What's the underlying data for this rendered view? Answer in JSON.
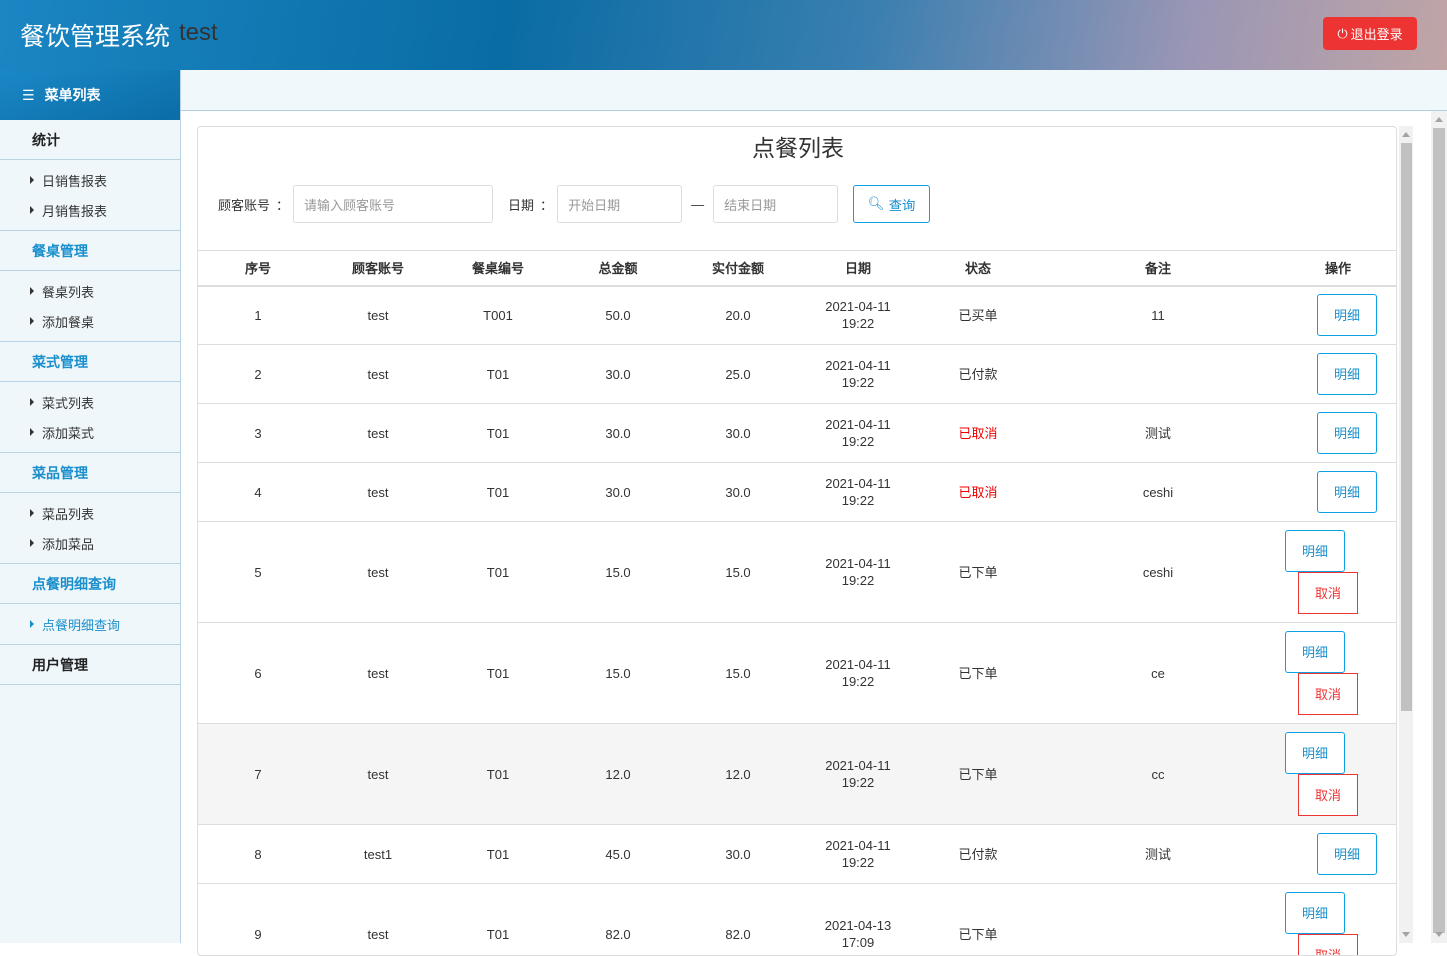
{
  "header": {
    "title": "餐饮管理系统",
    "user": "test",
    "logout": "退出登录"
  },
  "sidebar": {
    "head": "菜单列表",
    "groups": [
      {
        "label": "统计",
        "items": [
          "日销售报表",
          "月销售报表"
        ]
      },
      {
        "label": "餐桌管理",
        "items": [
          "餐桌列表",
          "添加餐桌"
        ]
      },
      {
        "label": "菜式管理",
        "items": [
          "菜式列表",
          "添加菜式"
        ]
      },
      {
        "label": "菜品管理",
        "items": [
          "菜品列表",
          "添加菜品"
        ]
      },
      {
        "label": "点餐明细查询",
        "items": [
          "点餐明细查询"
        ]
      },
      {
        "label": "用户管理",
        "items": []
      }
    ]
  },
  "main": {
    "title": "点餐列表",
    "filter": {
      "account_label": "顾客账号",
      "colon": "：",
      "account_placeholder": "请输入顾客账号",
      "date_label": "日期",
      "start_placeholder": "开始日期",
      "sep": "—",
      "end_placeholder": "结束日期",
      "query": "查询"
    },
    "columns": [
      "序号",
      "顾客账号",
      "餐桌编号",
      "总金额",
      "实付金额",
      "日期",
      "状态",
      "备注",
      "操作"
    ],
    "detail_label": "明细",
    "cancel_label": "取消",
    "rows": [
      [
        "1",
        "test",
        "T001",
        "50.0",
        "20.0",
        "2021-04-11",
        "19:22",
        "已买单",
        "11"
      ],
      [
        "2",
        "test",
        "T01",
        "30.0",
        "25.0",
        "2021-04-11",
        "19:22",
        "已付款",
        ""
      ],
      [
        "3",
        "test",
        "T01",
        "30.0",
        "30.0",
        "2021-04-11",
        "19:22",
        "已取消",
        "测试"
      ],
      [
        "4",
        "test",
        "T01",
        "30.0",
        "30.0",
        "2021-04-11",
        "19:22",
        "已取消",
        "ceshi"
      ],
      [
        "5",
        "test",
        "T01",
        "15.0",
        "15.0",
        "2021-04-11",
        "19:22",
        "已下单",
        "ceshi"
      ],
      [
        "6",
        "test",
        "T01",
        "15.0",
        "15.0",
        "2021-04-11",
        "19:22",
        "已下单",
        "ce"
      ],
      [
        "7",
        "test",
        "T01",
        "12.0",
        "12.0",
        "2021-04-11",
        "19:22",
        "已下单",
        "cc"
      ],
      [
        "8",
        "test1",
        "T01",
        "45.0",
        "30.0",
        "2021-04-11",
        "19:22",
        "已付款",
        "测试"
      ],
      [
        "9",
        "test",
        "T01",
        "82.0",
        "82.0",
        "2021-04-13",
        "17:09",
        "已下单",
        ""
      ]
    ]
  },
  "colors": {
    "accent": "#1a8fcc",
    "danger": "#ee3333"
  }
}
